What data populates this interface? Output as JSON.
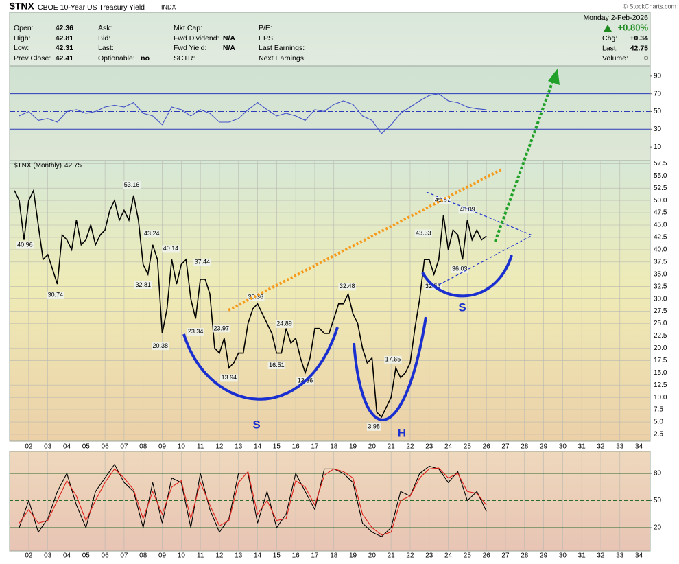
{
  "header": {
    "symbol": "$TNX",
    "name": "CBOE 10-Year US Treasury Yield",
    "exchange": "INDX",
    "watermark": "© StockCharts.com",
    "date": "Monday  2-Feb-2026",
    "change_pct": "+0.80%",
    "columns": [
      [
        {
          "label": "Open:",
          "value": 42.36
        },
        {
          "label": "High:",
          "value": 42.81
        },
        {
          "label": "Low:",
          "value": 42.31
        },
        {
          "label": "Prev Close:",
          "value": 42.41
        }
      ],
      [
        {
          "label": "Ask:"
        },
        {
          "label": "Bid:"
        },
        {
          "label": "Last:"
        },
        {
          "label": "Optionable:",
          "value": "no"
        }
      ],
      [
        {
          "label": "Mkt Cap:"
        },
        {
          "label": "Fwd Dividend:",
          "value": "N/A"
        },
        {
          "label": "Fwd Yield:",
          "value": "N/A"
        },
        {
          "label": "SCTR:"
        }
      ],
      [
        {
          "label": "P/E:"
        },
        {
          "label": "EPS:"
        },
        {
          "label": "Last Earnings:"
        },
        {
          "label": "Next Earnings:"
        }
      ]
    ],
    "quote": [
      {
        "label": "Chg:",
        "value": "+0.34"
      },
      {
        "label": "Last:",
        "value": 42.75
      },
      {
        "label": "Volume:",
        "value": 0
      }
    ]
  },
  "pattern_labels": [
    "S",
    "H",
    "S"
  ],
  "chart_data": [
    {
      "type": "line",
      "xlim": [
        2001.14,
        2034.59
      ],
      "ylim": [
        -5.4,
        101.5
      ],
      "yticks": [
        10,
        30,
        50,
        70,
        90
      ],
      "reference_lines": [
        {
          "value": 70,
          "color": "#2a3ab8",
          "style": "solid"
        },
        {
          "value": 50,
          "color": "#2a3ab8",
          "style": "dashdot"
        },
        {
          "value": 30,
          "color": "#2a3ab8",
          "style": "solid"
        }
      ],
      "x": [
        2001.5,
        2002,
        2002.5,
        2003,
        2003.5,
        2004,
        2004.5,
        2005,
        2005.5,
        2006,
        2006.5,
        2007,
        2007.5,
        2008,
        2008.5,
        2009,
        2009.5,
        2010,
        2010.5,
        2011,
        2011.5,
        2012,
        2012.5,
        2013,
        2013.5,
        2014,
        2014.5,
        2015,
        2015.5,
        2016,
        2016.5,
        2017,
        2017.5,
        2018,
        2018.5,
        2019,
        2019.5,
        2020,
        2020.5,
        2021,
        2021.5,
        2022,
        2022.5,
        2023,
        2023.5,
        2024,
        2024.5,
        2025,
        2025.5,
        2026
      ],
      "series": [
        {
          "color": "#4050c8",
          "values": [
            45,
            50,
            40,
            42,
            38,
            50,
            52,
            48,
            50,
            55,
            57,
            55,
            60,
            48,
            45,
            35,
            55,
            52,
            45,
            52,
            48,
            38,
            38,
            42,
            52,
            60,
            52,
            45,
            48,
            45,
            40,
            52,
            50,
            58,
            62,
            58,
            45,
            40,
            25,
            35,
            48,
            55,
            62,
            68,
            70,
            62,
            60,
            55,
            53,
            52
          ]
        }
      ]
    },
    {
      "type": "line",
      "xlim": [
        2001.14,
        2034.59
      ],
      "ylim": [
        1.1,
        58.1
      ],
      "grid": true,
      "legend_symbol": "$TNX",
      "last_value": 42.75,
      "xticks": [
        {
          "value": 2002,
          "label": "02"
        },
        {
          "value": 2003,
          "label": "03"
        },
        {
          "value": 2004,
          "label": "04"
        },
        {
          "value": 2005,
          "label": "05"
        },
        {
          "value": 2006,
          "label": "06"
        },
        {
          "value": 2007,
          "label": "07"
        },
        {
          "value": 2008,
          "label": "08"
        },
        {
          "value": 2009,
          "label": "09"
        },
        {
          "value": 2010,
          "label": "10"
        },
        {
          "value": 2011,
          "label": "11"
        },
        {
          "value": 2012,
          "label": "12"
        },
        {
          "value": 2013,
          "label": "13"
        },
        {
          "value": 2014,
          "label": "14"
        },
        {
          "value": 2015,
          "label": "15"
        },
        {
          "value": 2016,
          "label": "16"
        },
        {
          "value": 2017,
          "label": "17"
        },
        {
          "value": 2018,
          "label": "18"
        },
        {
          "value": 2019,
          "label": "19"
        },
        {
          "value": 2020,
          "label": "20"
        },
        {
          "value": 2021,
          "label": "21"
        },
        {
          "value": 2022,
          "label": "22"
        },
        {
          "value": 2023,
          "label": "23"
        },
        {
          "value": 2024,
          "label": "24"
        },
        {
          "value": 2025,
          "label": "25"
        },
        {
          "value": 2026,
          "label": "26"
        },
        {
          "value": 2027,
          "label": "27"
        },
        {
          "value": 2028,
          "label": "28"
        },
        {
          "value": 2029,
          "label": "29"
        },
        {
          "value": 2030,
          "label": "30"
        },
        {
          "value": 2031,
          "label": "31"
        },
        {
          "value": 2032,
          "label": "32"
        },
        {
          "value": 2033,
          "label": "33"
        },
        {
          "value": 2034,
          "label": "34"
        }
      ],
      "yticks": [
        2.5,
        {
          "value": 5,
          "label": "5.0"
        },
        7.5,
        {
          "value": 10,
          "label": "10.0"
        },
        12.5,
        {
          "value": 15,
          "label": "15.0"
        },
        17.5,
        {
          "value": 20,
          "label": "20.0"
        },
        22.5,
        {
          "value": 25,
          "label": "25.0"
        },
        27.5,
        {
          "value": 30,
          "label": "30.0"
        },
        32.5,
        {
          "value": 35,
          "label": "35.0"
        },
        37.5,
        {
          "value": 40,
          "label": "40.0"
        },
        42.5,
        {
          "value": 45,
          "label": "45.0"
        },
        47.5,
        {
          "value": 50,
          "label": "50.0"
        },
        52.5,
        {
          "value": 55,
          "label": "55.0"
        },
        57.5
      ],
      "x": [
        2001.25,
        2001.5,
        2001.75,
        2002,
        2002.25,
        2002.5,
        2002.75,
        2003,
        2003.25,
        2003.5,
        2003.75,
        2004,
        2004.25,
        2004.5,
        2004.75,
        2005,
        2005.25,
        2005.5,
        2005.75,
        2006,
        2006.25,
        2006.5,
        2006.75,
        2007,
        2007.25,
        2007.5,
        2007.75,
        2008,
        2008.25,
        2008.5,
        2008.75,
        2009,
        2009.25,
        2009.5,
        2009.75,
        2010,
        2010.25,
        2010.5,
        2010.75,
        2011,
        2011.25,
        2011.5,
        2011.75,
        2012,
        2012.25,
        2012.5,
        2012.75,
        2013,
        2013.25,
        2013.5,
        2013.75,
        2014,
        2014.25,
        2014.5,
        2014.75,
        2015,
        2015.25,
        2015.5,
        2015.75,
        2016,
        2016.25,
        2016.5,
        2016.75,
        2017,
        2017.25,
        2017.5,
        2017.75,
        2018,
        2018.25,
        2018.5,
        2018.75,
        2019,
        2019.25,
        2019.5,
        2019.75,
        2020,
        2020.25,
        2020.5,
        2020.75,
        2021,
        2021.25,
        2021.5,
        2021.75,
        2022,
        2022.25,
        2022.5,
        2022.75,
        2023,
        2023.25,
        2023.5,
        2023.75,
        2024,
        2024.25,
        2024.5,
        2024.75,
        2025,
        2025.25,
        2025.5,
        2025.75,
        2026
      ],
      "series": [
        {
          "name": "$TNX (Monthly)",
          "color": "#000000",
          "values": [
            52,
            50,
            42,
            50,
            52,
            45,
            38,
            39,
            36,
            33,
            43,
            42,
            40,
            46,
            41,
            42,
            45,
            41,
            43,
            44,
            48,
            50,
            46,
            48,
            46,
            51,
            46,
            37,
            35,
            41,
            38,
            23,
            28,
            38,
            33,
            37,
            38,
            30,
            26,
            34,
            34,
            31,
            20,
            19,
            22,
            16,
            17,
            19,
            19,
            25,
            28,
            29,
            27,
            25,
            23,
            19,
            19,
            24,
            21,
            22,
            18,
            15,
            18,
            24,
            24,
            23,
            23,
            26,
            29,
            29,
            31,
            27,
            25,
            20,
            17,
            18,
            7,
            6,
            8,
            10,
            16,
            14,
            15,
            17,
            24,
            30,
            38,
            38,
            35,
            38,
            47,
            40,
            44,
            43,
            38,
            46,
            42,
            44,
            42,
            42.75
          ]
        }
      ],
      "annotations": [
        {
          "x": 2001.8,
          "value": 40.96
        },
        {
          "x": 2003.4,
          "value": 30.74
        },
        {
          "x": 2007.4,
          "value": 53.16
        },
        {
          "x": 2008.45,
          "value": 43.24
        },
        {
          "x": 2008.0,
          "value": 32.81
        },
        {
          "x": 2009.45,
          "value": 40.14
        },
        {
          "x": 2008.9,
          "value": 20.38
        },
        {
          "x": 2011.1,
          "value": 37.44
        },
        {
          "x": 2012.1,
          "value": 23.97
        },
        {
          "x": 2010.75,
          "value": 23.34
        },
        {
          "x": 2012.5,
          "value": 13.94
        },
        {
          "x": 2013.9,
          "value": 30.36
        },
        {
          "x": 2015.4,
          "value": 24.89
        },
        {
          "x": 2015.0,
          "value": 16.51
        },
        {
          "x": 2016.5,
          "value": 13.36
        },
        {
          "x": 2018.7,
          "value": 32.48
        },
        {
          "x": 2021.1,
          "value": 17.65
        },
        {
          "x": 2020.1,
          "value": 3.98
        },
        {
          "x": 2022.7,
          "value": 43.33
        },
        {
          "x": 2023.2,
          "value": 32.53
        },
        {
          "x": 2023.7,
          "value": 49.97
        },
        {
          "x": 2025.0,
          "value": 48.09
        },
        {
          "x": 2024.6,
          "value": 36.03
        }
      ]
    },
    {
      "type": "line",
      "xlim": [
        2001.14,
        2034.59
      ],
      "ylim": [
        -5.8,
        104.3
      ],
      "yticks": [
        20,
        50,
        80
      ],
      "reference_lines": [
        {
          "value": 80,
          "color": "#2a6b2a",
          "style": "solid"
        },
        {
          "value": 50,
          "color": "#2a6b2a",
          "style": "dash"
        },
        {
          "value": 20,
          "color": "#2a6b2a",
          "style": "solid"
        }
      ],
      "xticks": [
        {
          "value": 2002,
          "label": "02"
        },
        {
          "value": 2003,
          "label": "03"
        },
        {
          "value": 2004,
          "label": "04"
        },
        {
          "value": 2005,
          "label": "05"
        },
        {
          "value": 2006,
          "label": "06"
        },
        {
          "value": 2007,
          "label": "07"
        },
        {
          "value": 2008,
          "label": "08"
        },
        {
          "value": 2009,
          "label": "09"
        },
        {
          "value": 2010,
          "label": "10"
        },
        {
          "value": 2011,
          "label": "11"
        },
        {
          "value": 2012,
          "label": "12"
        },
        {
          "value": 2013,
          "label": "13"
        },
        {
          "value": 2014,
          "label": "14"
        },
        {
          "value": 2015,
          "label": "15"
        },
        {
          "value": 2016,
          "label": "16"
        },
        {
          "value": 2017,
          "label": "17"
        },
        {
          "value": 2018,
          "label": "18"
        },
        {
          "value": 2019,
          "label": "19"
        },
        {
          "value": 2020,
          "label": "20"
        },
        {
          "value": 2021,
          "label": "21"
        },
        {
          "value": 2022,
          "label": "22"
        },
        {
          "value": 2023,
          "label": "23"
        },
        {
          "value": 2024,
          "label": "24"
        },
        {
          "value": 2025,
          "label": "25"
        },
        {
          "value": 2026,
          "label": "26"
        },
        {
          "value": 2027,
          "label": "27"
        },
        {
          "value": 2028,
          "label": "28"
        },
        {
          "value": 2029,
          "label": "29"
        },
        {
          "value": 2030,
          "label": "30"
        },
        {
          "value": 2031,
          "label": "31"
        },
        {
          "value": 2032,
          "label": "32"
        },
        {
          "value": 2033,
          "label": "33"
        },
        {
          "value": 2034,
          "label": "34"
        }
      ],
      "x": [
        2001.5,
        2002,
        2002.5,
        2003,
        2003.5,
        2004,
        2004.5,
        2005,
        2005.5,
        2006,
        2006.5,
        2007,
        2007.5,
        2008,
        2008.5,
        2009,
        2009.5,
        2010,
        2010.5,
        2011,
        2011.5,
        2012,
        2012.5,
        2013,
        2013.5,
        2014,
        2014.5,
        2015,
        2015.5,
        2016,
        2016.5,
        2017,
        2017.5,
        2018,
        2018.5,
        2019,
        2019.5,
        2020,
        2020.5,
        2021,
        2021.5,
        2022,
        2022.5,
        2023,
        2023.5,
        2024,
        2024.5,
        2025,
        2025.5,
        2026
      ],
      "series": [
        {
          "color": "#000000",
          "values": [
            20,
            50,
            15,
            30,
            60,
            80,
            45,
            20,
            60,
            75,
            90,
            70,
            60,
            20,
            70,
            25,
            75,
            70,
            20,
            80,
            40,
            15,
            30,
            80,
            80,
            25,
            60,
            20,
            35,
            80,
            60,
            40,
            85,
            85,
            80,
            70,
            25,
            15,
            10,
            20,
            60,
            55,
            80,
            88,
            85,
            70,
            82,
            50,
            60,
            38
          ]
        },
        {
          "color": "#e0201a",
          "values": [
            25,
            40,
            25,
            28,
            50,
            72,
            55,
            28,
            50,
            70,
            85,
            75,
            62,
            30,
            60,
            35,
            65,
            72,
            30,
            70,
            45,
            22,
            28,
            70,
            82,
            35,
            50,
            28,
            30,
            72,
            65,
            45,
            78,
            85,
            82,
            75,
            35,
            20,
            12,
            15,
            50,
            55,
            75,
            85,
            86,
            75,
            80,
            60,
            58,
            45
          ]
        }
      ]
    }
  ]
}
